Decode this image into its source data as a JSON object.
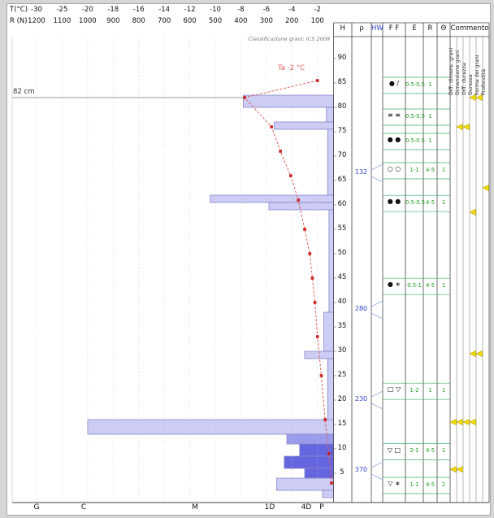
{
  "colors": {
    "bar_light": "#ccccf4",
    "bar_medium": "#9b9bec",
    "bar_dark": "#6565e0",
    "bar_border": "#8888cc",
    "temp_line": "#e06060",
    "temp_marker": "#cc2222",
    "density_text": "#3344cc",
    "hw_header": "#3344cc",
    "row_line": "#3fae6a",
    "value_text": "#1f9e1f",
    "marker_fill": "#f2e000",
    "marker_stroke": "#b09a00",
    "grid": "#c8c8c8"
  },
  "top_axis": {
    "t_label": "T(°C)",
    "r_label": "R (N)",
    "t_ticks": [
      "-30",
      "-25",
      "-20",
      "-18",
      "-16",
      "-14",
      "-12",
      "-10",
      "-8",
      "-6",
      "-4",
      "-2"
    ],
    "r_ticks": [
      "1200",
      "1100",
      "1000",
      "900",
      "800",
      "700",
      "600",
      "500",
      "400",
      "300",
      "200",
      "100"
    ]
  },
  "annotations": {
    "classification": "Classificazione grani: ICS 2009",
    "surface_height_label": "82 cm",
    "air_temp_label": "Ta -2 °C"
  },
  "bottom_axis": {
    "labels": [
      "G",
      "C",
      "M",
      "1D",
      "4D",
      "P"
    ]
  },
  "chart_data": [
    {
      "type": "bar",
      "name": "layer-hardness-profile",
      "orientation": "horizontal",
      "value_axis": "R (N)",
      "value_range": [
        1200,
        100
      ],
      "depth_axis": "H (cm)",
      "depth_range": [
        0,
        96
      ],
      "layers": [
        {
          "top_cm": 82.5,
          "bottom_cm": 80,
          "hardness_n": 390,
          "shade": "light"
        },
        {
          "top_cm": 80,
          "bottom_cm": 77,
          "hardness_n": 65,
          "shade": "light"
        },
        {
          "top_cm": 77,
          "bottom_cm": 75.5,
          "hardness_n": 270,
          "shade": "light"
        },
        {
          "top_cm": 75.5,
          "bottom_cm": 62,
          "hardness_n": 60,
          "shade": "light"
        },
        {
          "top_cm": 62,
          "bottom_cm": 60.5,
          "hardness_n": 520,
          "shade": "light"
        },
        {
          "top_cm": 60.5,
          "bottom_cm": 59,
          "hardness_n": 290,
          "shade": "light"
        },
        {
          "top_cm": 59,
          "bottom_cm": 38,
          "hardness_n": 55,
          "shade": "light"
        },
        {
          "top_cm": 38,
          "bottom_cm": 30,
          "hardness_n": 75,
          "shade": "light"
        },
        {
          "top_cm": 30,
          "bottom_cm": 28.5,
          "hardness_n": 150,
          "shade": "light"
        },
        {
          "top_cm": 28.5,
          "bottom_cm": 16,
          "hardness_n": 60,
          "shade": "light"
        },
        {
          "top_cm": 16,
          "bottom_cm": 13,
          "hardness_n": 1000,
          "shade": "light"
        },
        {
          "top_cm": 13,
          "bottom_cm": 11,
          "hardness_n": 220,
          "shade": "medium"
        },
        {
          "top_cm": 11,
          "bottom_cm": 8.5,
          "hardness_n": 170,
          "shade": "dark"
        },
        {
          "top_cm": 8.5,
          "bottom_cm": 6,
          "hardness_n": 230,
          "shade": "dark"
        },
        {
          "top_cm": 6,
          "bottom_cm": 4,
          "hardness_n": 150,
          "shade": "dark"
        },
        {
          "top_cm": 4,
          "bottom_cm": 1.5,
          "hardness_n": 260,
          "shade": "light"
        },
        {
          "top_cm": 1.5,
          "bottom_cm": 0,
          "hardness_n": 80,
          "shade": "light"
        }
      ]
    },
    {
      "type": "line",
      "name": "temperature-profile",
      "x_axis": "T (°C)",
      "label": "Ta -2 °C",
      "points": [
        {
          "h_cm": 85.5,
          "t_c": -2.0
        },
        {
          "h_cm": 82,
          "t_c": -7.7
        },
        {
          "h_cm": 76,
          "t_c": -5.6
        },
        {
          "h_cm": 71,
          "t_c": -4.9
        },
        {
          "h_cm": 66,
          "t_c": -4.1
        },
        {
          "h_cm": 61,
          "t_c": -3.5
        },
        {
          "h_cm": 55,
          "t_c": -3.0
        },
        {
          "h_cm": 50,
          "t_c": -2.6
        },
        {
          "h_cm": 45,
          "t_c": -2.4
        },
        {
          "h_cm": 40,
          "t_c": -2.2
        },
        {
          "h_cm": 33,
          "t_c": -2.0
        },
        {
          "h_cm": 25,
          "t_c": -1.7
        },
        {
          "h_cm": 16,
          "t_c": -1.4
        },
        {
          "h_cm": 9,
          "t_c": -1.1
        },
        {
          "h_cm": 3,
          "t_c": -0.9
        }
      ]
    }
  ],
  "side_panel": {
    "headers": [
      "H",
      "ρ",
      "HW",
      "F F",
      "E",
      "R",
      "Θ",
      "Commento"
    ],
    "h_ticks": [
      "90",
      "85",
      "80",
      "75",
      "70",
      "65",
      "60",
      "55",
      "50",
      "45",
      "40",
      "35",
      "30",
      "25",
      "20",
      "15",
      "10",
      "5"
    ],
    "densities": [
      {
        "h_cm": 66.5,
        "value": "132"
      },
      {
        "h_cm": 38.5,
        "value": "280"
      },
      {
        "h_cm": 20,
        "value": "230"
      },
      {
        "h_cm": 5.5,
        "value": "370"
      }
    ],
    "grain_rows": [
      {
        "h_cm": 84.5,
        "form": "● /",
        "size": "0.5-0.5",
        "hardness": "1",
        "wetness": ""
      },
      {
        "h_cm": 78,
        "form": "≡ ≡",
        "size": "0.5-0.5",
        "hardness": "1",
        "wetness": ""
      },
      {
        "h_cm": 73,
        "form": "● ●",
        "size": "0.5-0.5",
        "hardness": "1",
        "wetness": ""
      },
      {
        "h_cm": 67,
        "form": "○ ○",
        "size": "1-1",
        "hardness": "4-5",
        "wetness": "1"
      },
      {
        "h_cm": 60.3,
        "form": "● ●",
        "size": "0.5-0.5",
        "hardness": "4-5",
        "wetness": "1"
      },
      {
        "h_cm": 43.3,
        "form": "● ∗",
        "size": "0.5-1",
        "hardness": "4-5",
        "wetness": "1"
      },
      {
        "h_cm": 21.8,
        "form": "□ ▽",
        "size": "1-2",
        "hardness": "1",
        "wetness": "1"
      },
      {
        "h_cm": 9.4,
        "form": "▽ □",
        "size": "2-1",
        "hardness": "4-5",
        "wetness": "1"
      },
      {
        "h_cm": 2.5,
        "form": "▽ ∗",
        "size": "1-1",
        "hardness": "4-5",
        "wetness": "2"
      }
    ],
    "commento_headers": [
      "Diff. dimens. grani",
      "Dimensione grani",
      "Diff. durezza",
      "Durezza",
      "Forma dei grani",
      "Profondità"
    ],
    "markers": [
      {
        "h_cm": 82,
        "cols": [
          3,
          4
        ]
      },
      {
        "h_cm": 76,
        "cols": [
          1,
          2
        ]
      },
      {
        "h_cm": 63.5,
        "cols": [
          5
        ]
      },
      {
        "h_cm": 58.5,
        "cols": [
          3
        ]
      },
      {
        "h_cm": 29.5,
        "cols": [
          3,
          4
        ]
      },
      {
        "h_cm": 15.5,
        "cols": [
          0,
          1,
          2,
          3
        ]
      },
      {
        "h_cm": 5.8,
        "cols": [
          0,
          1
        ]
      }
    ]
  }
}
